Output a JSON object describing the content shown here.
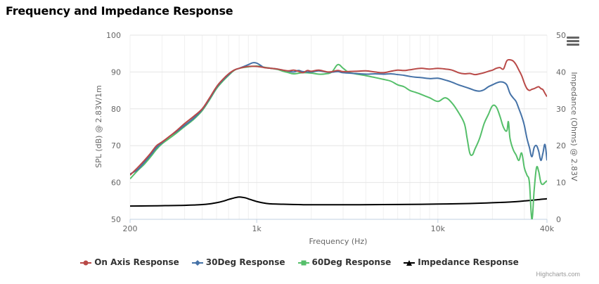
{
  "page": {
    "title": "Frequency and Impedance Response",
    "credits": "Highcharts.com",
    "menu_icon": "menu-icon"
  },
  "chart_data": {
    "type": "line",
    "title": "Frequency and Impedance Response",
    "xlabel": "Frequency (Hz)",
    "x_scale": "log",
    "xlim": [
      200,
      40000
    ],
    "x_ticks": [
      {
        "v": 200,
        "label": "200"
      },
      {
        "v": 1000,
        "label": "1k"
      },
      {
        "v": 10000,
        "label": "10k"
      },
      {
        "v": 40000,
        "label": "40k"
      }
    ],
    "y_left": {
      "label": "SPL (dB) @ 2.83V/1m",
      "lim": [
        50,
        100
      ],
      "ticks": [
        50,
        60,
        70,
        80,
        90,
        100
      ]
    },
    "y_right": {
      "label": "Impedance (Ohms) @ 2.83V",
      "lim": [
        0,
        50
      ],
      "ticks": [
        0,
        10,
        20,
        30,
        40,
        50
      ]
    },
    "grid": true,
    "legend_position": "bottom",
    "series": [
      {
        "name": "On Axis Response",
        "axis": "left",
        "color": "#b94a48",
        "marker": "circle",
        "points": [
          [
            200,
            62
          ],
          [
            220,
            64
          ],
          [
            240,
            66
          ],
          [
            260,
            68
          ],
          [
            280,
            70
          ],
          [
            300,
            71
          ],
          [
            330,
            72.5
          ],
          [
            360,
            74
          ],
          [
            400,
            76
          ],
          [
            450,
            78
          ],
          [
            500,
            80
          ],
          [
            550,
            83
          ],
          [
            600,
            86
          ],
          [
            650,
            88
          ],
          [
            700,
            89.5
          ],
          [
            750,
            90.5
          ],
          [
            800,
            91
          ],
          [
            900,
            91.5
          ],
          [
            1000,
            91.5
          ],
          [
            1100,
            91.2
          ],
          [
            1200,
            91
          ],
          [
            1300,
            90.8
          ],
          [
            1400,
            90.5
          ],
          [
            1500,
            90.3
          ],
          [
            1600,
            90.5
          ],
          [
            1700,
            90.2
          ],
          [
            1800,
            89.8
          ],
          [
            1900,
            90.4
          ],
          [
            2000,
            90.2
          ],
          [
            2200,
            90.5
          ],
          [
            2500,
            90
          ],
          [
            2800,
            90.4
          ],
          [
            3000,
            90.1
          ],
          [
            3500,
            90.2
          ],
          [
            4000,
            90.3
          ],
          [
            4500,
            90
          ],
          [
            5000,
            89.8
          ],
          [
            5500,
            90.2
          ],
          [
            6000,
            90.5
          ],
          [
            6500,
            90.4
          ],
          [
            7000,
            90.6
          ],
          [
            8000,
            91
          ],
          [
            9000,
            90.8
          ],
          [
            10000,
            91
          ],
          [
            11000,
            90.8
          ],
          [
            12000,
            90.5
          ],
          [
            13000,
            89.8
          ],
          [
            14000,
            89.5
          ],
          [
            15000,
            89.6
          ],
          [
            16000,
            89.3
          ],
          [
            17000,
            89.5
          ],
          [
            18000,
            89.8
          ],
          [
            19000,
            90.2
          ],
          [
            20000,
            90.5
          ],
          [
            21000,
            91
          ],
          [
            22000,
            91.2
          ],
          [
            23000,
            90.8
          ],
          [
            24000,
            93
          ],
          [
            25000,
            93.3
          ],
          [
            26000,
            93
          ],
          [
            27000,
            92
          ],
          [
            28000,
            90.5
          ],
          [
            29000,
            89
          ],
          [
            30000,
            87
          ],
          [
            31000,
            85.5
          ],
          [
            32000,
            85
          ],
          [
            33000,
            85.3
          ],
          [
            34000,
            85.5
          ],
          [
            35000,
            85.8
          ],
          [
            36000,
            86
          ],
          [
            37000,
            85.5
          ],
          [
            38000,
            85.2
          ],
          [
            39000,
            84.2
          ],
          [
            40000,
            83.3
          ]
        ]
      },
      {
        "name": "30Deg Response",
        "axis": "left",
        "color": "#4572a7",
        "marker": "diamond",
        "points": [
          [
            200,
            62.3
          ],
          [
            220,
            63.5
          ],
          [
            240,
            65.5
          ],
          [
            260,
            67.5
          ],
          [
            280,
            69.5
          ],
          [
            300,
            70.8
          ],
          [
            330,
            72.5
          ],
          [
            360,
            73.8
          ],
          [
            400,
            75.5
          ],
          [
            450,
            77.5
          ],
          [
            500,
            79.8
          ],
          [
            550,
            82.8
          ],
          [
            600,
            85.8
          ],
          [
            650,
            87.8
          ],
          [
            700,
            89.3
          ],
          [
            750,
            90.5
          ],
          [
            800,
            91
          ],
          [
            850,
            91.5
          ],
          [
            900,
            92
          ],
          [
            950,
            92.5
          ],
          [
            1000,
            92.4
          ],
          [
            1050,
            91.8
          ],
          [
            1100,
            91.2
          ],
          [
            1200,
            91
          ],
          [
            1300,
            90.8
          ],
          [
            1400,
            90.5
          ],
          [
            1500,
            90.2
          ],
          [
            1600,
            90
          ],
          [
            1700,
            90.4
          ],
          [
            1800,
            90.1
          ],
          [
            2000,
            90
          ],
          [
            2200,
            90.3
          ],
          [
            2500,
            89.9
          ],
          [
            2800,
            90.1
          ],
          [
            3000,
            89.8
          ],
          [
            3500,
            89.6
          ],
          [
            4000,
            89.4
          ],
          [
            4500,
            89.5
          ],
          [
            5000,
            89.4
          ],
          [
            5500,
            89.5
          ],
          [
            6000,
            89.3
          ],
          [
            6500,
            89.1
          ],
          [
            7000,
            88.8
          ],
          [
            7500,
            88.6
          ],
          [
            8000,
            88.5
          ],
          [
            9000,
            88.2
          ],
          [
            10000,
            88.3
          ],
          [
            11000,
            87.8
          ],
          [
            12000,
            87.2
          ],
          [
            13000,
            86.5
          ],
          [
            14000,
            86
          ],
          [
            15000,
            85.5
          ],
          [
            16000,
            85
          ],
          [
            17000,
            84.8
          ],
          [
            18000,
            85.2
          ],
          [
            19000,
            86
          ],
          [
            20000,
            86.5
          ],
          [
            21000,
            87
          ],
          [
            22000,
            87.3
          ],
          [
            23000,
            87.2
          ],
          [
            24000,
            86.5
          ],
          [
            25000,
            84.2
          ],
          [
            26000,
            83
          ],
          [
            27000,
            82
          ],
          [
            28000,
            80
          ],
          [
            29000,
            78
          ],
          [
            30000,
            75.5
          ],
          [
            31000,
            72
          ],
          [
            32000,
            69.5
          ],
          [
            33000,
            67
          ],
          [
            34000,
            69.5
          ],
          [
            35000,
            70
          ],
          [
            36000,
            68.5
          ],
          [
            37000,
            66
          ],
          [
            38000,
            68
          ],
          [
            39000,
            70.3
          ],
          [
            40000,
            66
          ]
        ]
      },
      {
        "name": "60Deg Response",
        "axis": "left",
        "color": "#55bf6a",
        "marker": "square",
        "points": [
          [
            200,
            61
          ],
          [
            220,
            63.2
          ],
          [
            240,
            65
          ],
          [
            260,
            67
          ],
          [
            280,
            69
          ],
          [
            300,
            70.5
          ],
          [
            330,
            72
          ],
          [
            360,
            73.4
          ],
          [
            400,
            75.2
          ],
          [
            450,
            77.2
          ],
          [
            500,
            79.5
          ],
          [
            550,
            82.5
          ],
          [
            600,
            85.5
          ],
          [
            650,
            87.5
          ],
          [
            700,
            89.1
          ],
          [
            750,
            90.4
          ],
          [
            800,
            91
          ],
          [
            900,
            91.4
          ],
          [
            1000,
            91.6
          ],
          [
            1100,
            91.3
          ],
          [
            1200,
            91
          ],
          [
            1300,
            90.7
          ],
          [
            1400,
            90.2
          ],
          [
            1500,
            89.8
          ],
          [
            1600,
            89.5
          ],
          [
            1800,
            89.8
          ],
          [
            2000,
            89.7
          ],
          [
            2200,
            89.4
          ],
          [
            2400,
            89.5
          ],
          [
            2600,
            90
          ],
          [
            2800,
            92
          ],
          [
            3000,
            91
          ],
          [
            3200,
            90
          ],
          [
            3500,
            89.5
          ],
          [
            4000,
            89
          ],
          [
            4500,
            88.5
          ],
          [
            5000,
            88
          ],
          [
            5500,
            87.5
          ],
          [
            6000,
            86.5
          ],
          [
            6500,
            86
          ],
          [
            7000,
            85
          ],
          [
            7500,
            84.5
          ],
          [
            8000,
            84
          ],
          [
            9000,
            83
          ],
          [
            10000,
            82
          ],
          [
            11000,
            83
          ],
          [
            12000,
            81.5
          ],
          [
            13000,
            79
          ],
          [
            14000,
            76
          ],
          [
            14500,
            72
          ],
          [
            15000,
            68
          ],
          [
            15500,
            67.5
          ],
          [
            16000,
            69
          ],
          [
            17000,
            72
          ],
          [
            18000,
            76
          ],
          [
            19000,
            78.5
          ],
          [
            20000,
            80.8
          ],
          [
            21000,
            80.5
          ],
          [
            22000,
            78
          ],
          [
            23000,
            75
          ],
          [
            24000,
            74
          ],
          [
            24500,
            76.5
          ],
          [
            25000,
            72
          ],
          [
            26000,
            69
          ],
          [
            27000,
            67.5
          ],
          [
            28000,
            66
          ],
          [
            29000,
            68
          ],
          [
            30000,
            64
          ],
          [
            31000,
            62
          ],
          [
            32000,
            60
          ],
          [
            33000,
            50
          ],
          [
            34000,
            58
          ],
          [
            35000,
            64
          ],
          [
            36000,
            63
          ],
          [
            37000,
            60
          ],
          [
            38000,
            59.5
          ],
          [
            39000,
            60
          ],
          [
            40000,
            60.5
          ]
        ]
      },
      {
        "name": "Impedance Response",
        "axis": "right",
        "color": "#000000",
        "marker": "triangle",
        "points": [
          [
            200,
            3.6
          ],
          [
            250,
            3.65
          ],
          [
            300,
            3.7
          ],
          [
            350,
            3.75
          ],
          [
            400,
            3.8
          ],
          [
            450,
            3.9
          ],
          [
            500,
            4.0
          ],
          [
            550,
            4.2
          ],
          [
            600,
            4.5
          ],
          [
            650,
            4.9
          ],
          [
            700,
            5.4
          ],
          [
            750,
            5.8
          ],
          [
            780,
            6.0
          ],
          [
            800,
            6.05
          ],
          [
            830,
            6.0
          ],
          [
            870,
            5.8
          ],
          [
            920,
            5.4
          ],
          [
            1000,
            4.85
          ],
          [
            1100,
            4.4
          ],
          [
            1200,
            4.2
          ],
          [
            1400,
            4.1
          ],
          [
            1700,
            4.0
          ],
          [
            2000,
            3.95
          ],
          [
            3000,
            3.95
          ],
          [
            5000,
            4.0
          ],
          [
            7000,
            4.05
          ],
          [
            10000,
            4.15
          ],
          [
            15000,
            4.3
          ],
          [
            20000,
            4.5
          ],
          [
            25000,
            4.7
          ],
          [
            30000,
            5.0
          ],
          [
            35000,
            5.3
          ],
          [
            40000,
            5.6
          ]
        ]
      }
    ]
  }
}
